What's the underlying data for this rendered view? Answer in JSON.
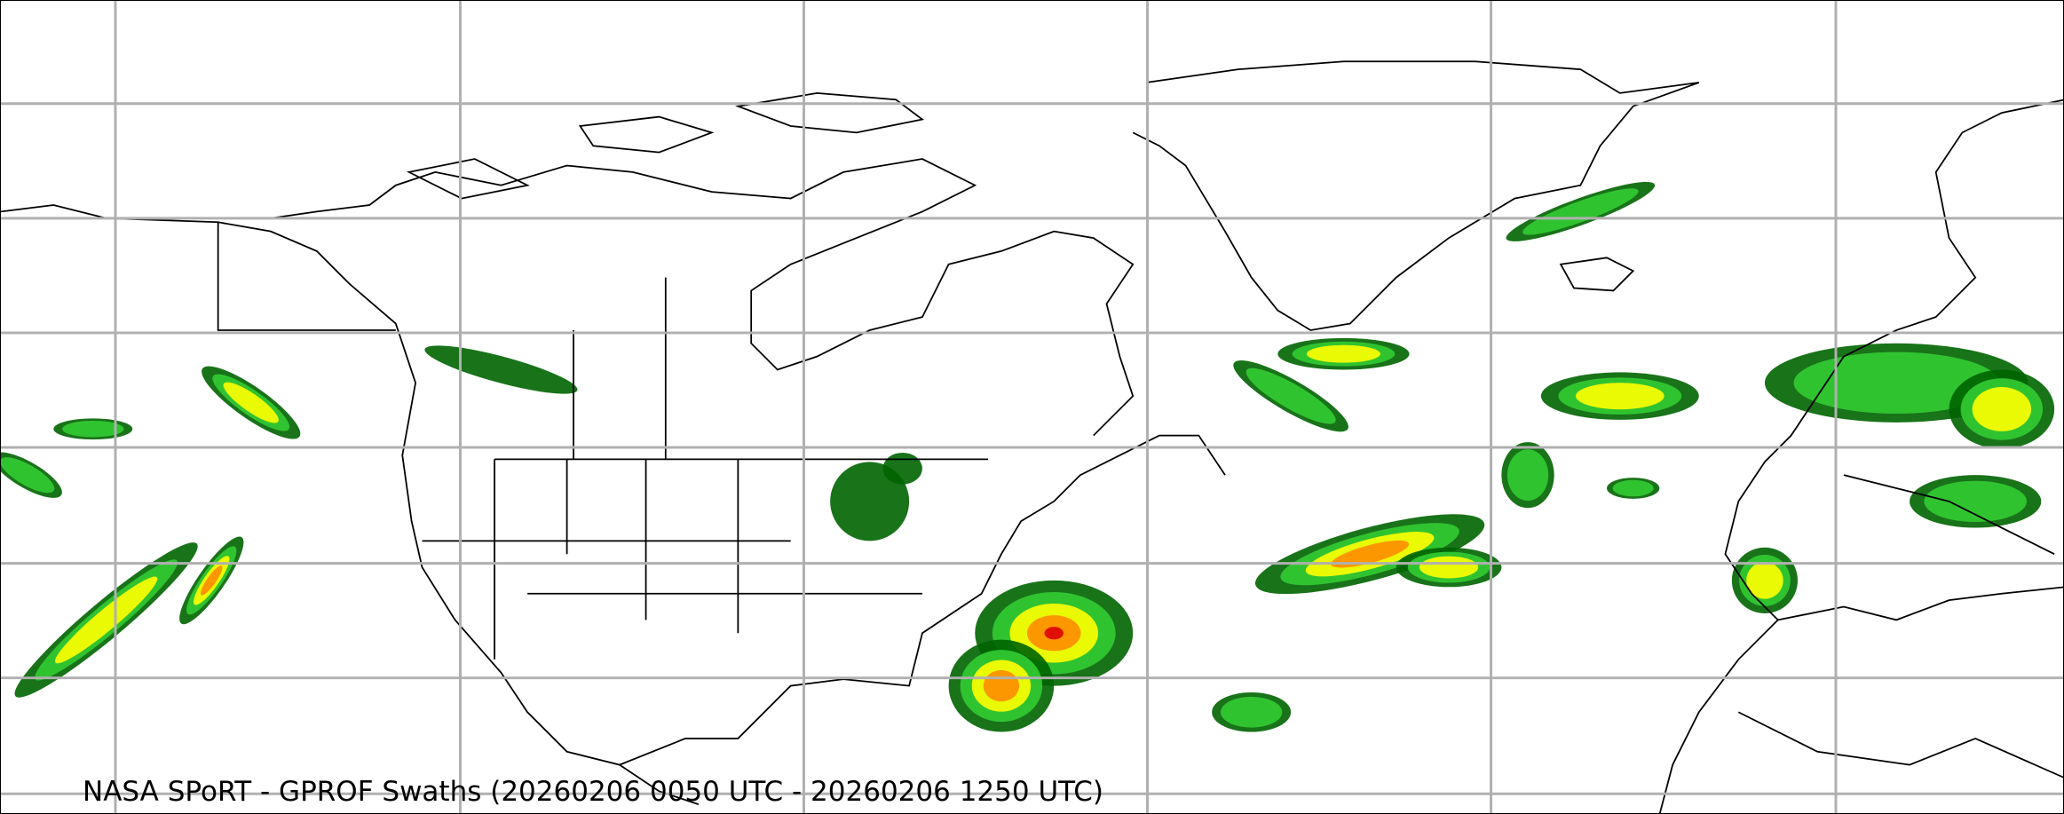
{
  "map": {
    "caption": "NASA SPoRT - GPROF Swaths (20260206 0050 UTC - 20260206 1250 UTC)",
    "projection": "equirectangular",
    "grid": true,
    "colors": {
      "grid": "#b0b0b0",
      "coastline": "#000000",
      "precip_light": "#006400",
      "precip_moderate": "#33cc33",
      "precip_heavy": "#ffff00",
      "precip_very_heavy": "#ff8c00",
      "precip_extreme": "#dd0000"
    }
  }
}
